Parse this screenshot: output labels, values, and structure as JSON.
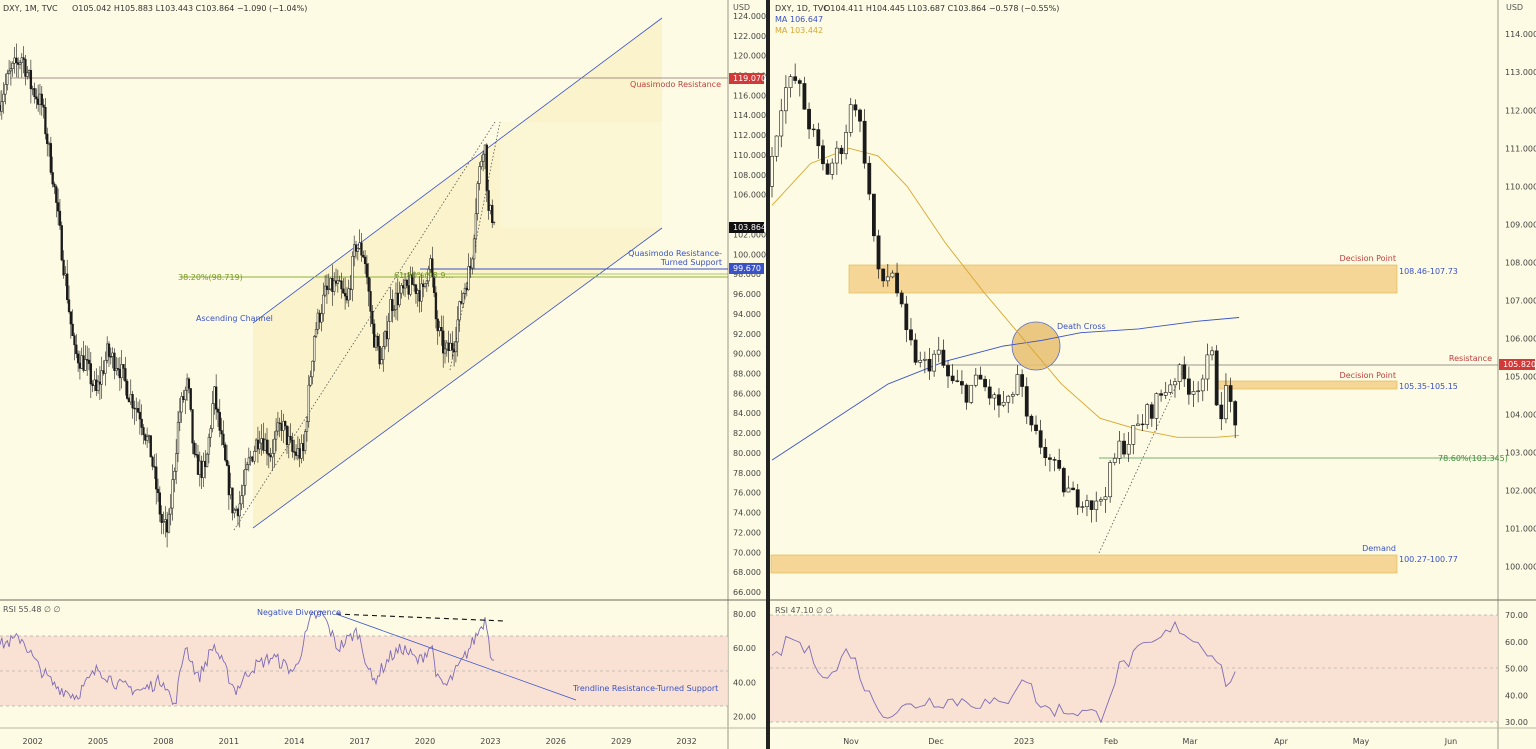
{
  "left_header": {
    "symbol": "DXY, 1M, TVC",
    "ohlc": "O105.042  H105.883  L103.443  C103.864  −1.090 (−1.04%)"
  },
  "right_header": {
    "symbol": "DXY, 1D, TVC",
    "ohlc": "O104.411  H104.445  L103.687  C103.864  −0.578 (−0.55%)",
    "ma1_label": "MA",
    "ma1_value": "106.647",
    "ma2_label": "MA",
    "ma2_value": "103.442"
  },
  "left_rsi_header": "RSI  55.48  ∅  ∅",
  "right_rsi_header": "RSI  47.10  ∅  ∅",
  "colors": {
    "background": "#fdfbe3",
    "candle": "#1a1a1a",
    "channel": "#3a52c8",
    "resistance_red": "#d23a3a",
    "support_blue": "#3a52c8",
    "fib_green": "#8fb23a",
    "zone_orange": "#f5d089",
    "ma_slow": "#3a52c8",
    "ma_fast": "#d8a630",
    "rsi_line": "#7e6bb5",
    "rsi_band": "#f7dccf"
  },
  "chart_data": [
    {
      "type": "candlestick",
      "panel": "left",
      "timeframe": "1M",
      "currency": "USD",
      "x_ticks": [
        "2002",
        "2005",
        "2008",
        "2011",
        "2014",
        "2017",
        "2020",
        "2023",
        "2026",
        "2029",
        "2032"
      ],
      "y_ticks": [
        "124.000",
        "122.000",
        "120.000",
        "118.000",
        "116.000",
        "114.000",
        "112.000",
        "110.000",
        "108.000",
        "106.000",
        "102.000",
        "100.000",
        "98.000",
        "96.000",
        "94.000",
        "92.000",
        "90.000",
        "88.000",
        "86.000",
        "84.000",
        "82.000",
        "80.000",
        "78.000",
        "76.000",
        "74.000",
        "72.000",
        "70.000",
        "68.000",
        "66.000"
      ],
      "ylim": [
        65.5,
        125.6
      ],
      "xlim": [
        2000.5,
        2033.9
      ],
      "series_approx": [
        [
          2000.5,
          115
        ],
        [
          2001.0,
          118
        ],
        [
          2001.6,
          120
        ],
        [
          2002.0,
          117
        ],
        [
          2002.5,
          115
        ],
        [
          2003.0,
          108
        ],
        [
          2003.5,
          99
        ],
        [
          2004.0,
          90
        ],
        [
          2004.5,
          89
        ],
        [
          2005.0,
          86
        ],
        [
          2005.5,
          90
        ],
        [
          2006.0,
          89
        ],
        [
          2006.5,
          86
        ],
        [
          2007.0,
          84
        ],
        [
          2007.5,
          80
        ],
        [
          2008.0,
          73
        ],
        [
          2008.3,
          72
        ],
        [
          2008.8,
          84
        ],
        [
          2009.2,
          87
        ],
        [
          2009.5,
          79
        ],
        [
          2010.0,
          78
        ],
        [
          2010.4,
          86
        ],
        [
          2010.9,
          79
        ],
        [
          2011.3,
          74
        ],
        [
          2011.6,
          75
        ],
        [
          2012.0,
          79
        ],
        [
          2012.5,
          82
        ],
        [
          2013.0,
          80
        ],
        [
          2013.5,
          83
        ],
        [
          2014.0,
          80
        ],
        [
          2014.5,
          80
        ],
        [
          2015.0,
          92
        ],
        [
          2015.5,
          96
        ],
        [
          2016.0,
          97
        ],
        [
          2016.5,
          95
        ],
        [
          2016.9,
          101
        ],
        [
          2017.3,
          100
        ],
        [
          2017.7,
          92
        ],
        [
          2018.1,
          89
        ],
        [
          2018.5,
          95
        ],
        [
          2019.0,
          96
        ],
        [
          2019.5,
          97
        ],
        [
          2020.0,
          96
        ],
        [
          2020.3,
          100
        ],
        [
          2020.6,
          93
        ],
        [
          2021.0,
          90
        ],
        [
          2021.4,
          91
        ],
        [
          2021.8,
          96
        ],
        [
          2022.2,
          99
        ],
        [
          2022.5,
          107
        ],
        [
          2022.8,
          112
        ],
        [
          2023.0,
          104
        ],
        [
          2023.2,
          103.9
        ]
      ],
      "annotations": [
        {
          "text": "Quasimodo Resistance",
          "value": 119.07,
          "price_label": "119.070"
        },
        {
          "text": "Quasimodo Resistance-",
          "text2": "Turned Support",
          "value": 99.67,
          "price_label": "99.670"
        },
        {
          "text": "38.20%(98.719)",
          "value": 98.719
        },
        {
          "text": "61.80%(98.9…",
          "value": 98.9
        },
        {
          "text": "Ascending Channel"
        }
      ],
      "last_price_label": "103.864"
    },
    {
      "type": "line",
      "panel": "left-rsi",
      "y_ticks": [
        "80.00",
        "60.00",
        "40.00",
        "20.00"
      ],
      "ylim": [
        15,
        87
      ],
      "levels": [
        70,
        50,
        30
      ],
      "annotations": [
        {
          "text": "Negative Divergence"
        },
        {
          "text": "Trendline Resistance-Turned Support"
        }
      ]
    },
    {
      "type": "candlestick",
      "panel": "right",
      "timeframe": "1D",
      "currency": "USD",
      "x_ticks": [
        "Nov",
        "Dec",
        "2023",
        "Feb",
        "Mar",
        "Apr",
        "May",
        "Jun"
      ],
      "y_ticks": [
        "114.000",
        "113.000",
        "112.000",
        "111.000",
        "110.000",
        "109.000",
        "108.000",
        "107.000",
        "106.000",
        "105.000",
        "104.000",
        "103.000",
        "102.000",
        "101.000",
        "100.000"
      ],
      "ylim": [
        99.2,
        114.9
      ],
      "series_approx": [
        [
          0,
          110
        ],
        [
          8,
          112.5
        ],
        [
          15,
          112.8
        ],
        [
          22,
          111.6
        ],
        [
          30,
          110.3
        ],
        [
          38,
          111
        ],
        [
          45,
          112.4
        ],
        [
          50,
          111
        ],
        [
          58,
          107.4
        ],
        [
          65,
          107.8
        ],
        [
          72,
          106
        ],
        [
          80,
          105.2
        ],
        [
          88,
          105.6
        ],
        [
          95,
          104.8
        ],
        [
          103,
          104.6
        ],
        [
          110,
          104.9
        ],
        [
          118,
          104.3
        ],
        [
          125,
          104.2
        ],
        [
          130,
          105.1
        ],
        [
          135,
          103.6
        ],
        [
          142,
          103.2
        ],
        [
          150,
          102.4
        ],
        [
          158,
          101.8
        ],
        [
          165,
          101.9
        ],
        [
          170,
          101.5
        ],
        [
          176,
          102.2
        ],
        [
          182,
          103.1
        ],
        [
          190,
          103.5
        ],
        [
          198,
          104.1
        ],
        [
          205,
          104.6
        ],
        [
          212,
          105.1
        ],
        [
          220,
          104.7
        ],
        [
          226,
          105.0
        ],
        [
          230,
          105.6
        ],
        [
          234,
          104.0
        ],
        [
          238,
          104.6
        ],
        [
          242,
          103.9
        ]
      ],
      "moving_averages": [
        {
          "label": "MA",
          "value": "106.647"
        },
        {
          "label": "MA",
          "value": "103.442"
        }
      ],
      "annotations": [
        {
          "text": "Decision Point",
          "range": "108.46-107.73",
          "lo": 107.73,
          "hi": 108.46
        },
        {
          "text": "Death Cross"
        },
        {
          "text": "Resistance",
          "value": 105.82,
          "price_label": "105.820"
        },
        {
          "text": "Decision Point",
          "range": "105.35-105.15",
          "lo": 105.15,
          "hi": 105.35
        },
        {
          "text": "78.60%(103.345)",
          "value": 103.345
        },
        {
          "text": "Demand",
          "range": "100.27-100.77",
          "lo": 100.27,
          "hi": 100.77
        }
      ]
    },
    {
      "type": "line",
      "panel": "right-rsi",
      "y_ticks": [
        "70.00",
        "60.00",
        "50.00",
        "40.00",
        "30.00"
      ],
      "ylim": [
        27,
        73
      ],
      "levels": [
        70,
        50,
        30
      ]
    }
  ]
}
